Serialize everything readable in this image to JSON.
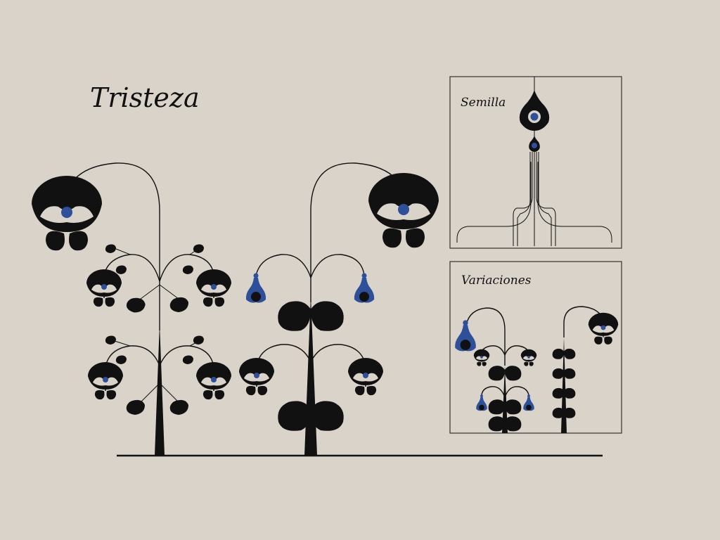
{
  "title": "Tristeza",
  "panels": {
    "seed": {
      "title": "Semilla"
    },
    "variations": {
      "title": "Variaciones"
    }
  },
  "colors": {
    "background": "#d9d3c9",
    "ink": "#111111",
    "accent": "#2e4f9a"
  },
  "icons": {
    "bloom": "crescent-bloom-icon",
    "bud": "blue-bud-icon",
    "leaf": "leaf-icon",
    "seed": "seed-drop-icon"
  }
}
